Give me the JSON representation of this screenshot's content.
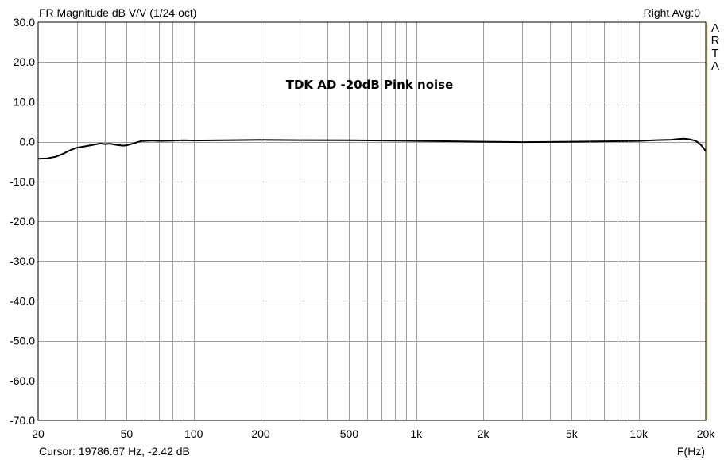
{
  "header": {
    "title": "FR Magnitude dB V/V (1/24 oct)",
    "channel_avg": "Right  Avg:0"
  },
  "brand_letters": [
    "A",
    "R",
    "T",
    "A"
  ],
  "footer": {
    "cursor": "Cursor: 19786.67 Hz, -2.42 dB",
    "x_axis_label": "F(Hz)"
  },
  "colors": {
    "background": "#ffffff",
    "grid": "#a0a0a0",
    "trace": "#000000",
    "brand_stripe": "#f4f0b4"
  },
  "chart_data": {
    "type": "line",
    "title": "FR Magnitude dB V/V (1/24 oct)",
    "annotation": "TDK AD -20dB Pink noise",
    "xlabel": "F(Hz)",
    "ylabel": "",
    "x_scale": "log",
    "xlim": [
      20,
      20000
    ],
    "ylim": [
      -70,
      30
    ],
    "grid": true,
    "x_ticks": [
      20,
      50,
      100,
      200,
      500,
      1000,
      2000,
      5000,
      10000,
      20000
    ],
    "x_tick_labels": [
      "20",
      "50",
      "100",
      "200",
      "500",
      "1k",
      "2k",
      "5k",
      "10k",
      "20k"
    ],
    "y_ticks": [
      30,
      20,
      10,
      0,
      -10,
      -20,
      -30,
      -40,
      -50,
      -60,
      -70
    ],
    "y_tick_labels": [
      "30.0",
      "20.0",
      "10.0",
      "0.0",
      "-10.0",
      "-20.0",
      "-30.0",
      "-40.0",
      "-50.0",
      "-60.0",
      "-70.0"
    ],
    "series": [
      {
        "x": [
          20,
          22,
          24,
          26,
          28,
          30,
          33,
          36,
          38,
          40,
          42,
          45,
          48,
          50,
          53,
          56,
          58,
          60,
          65,
          70,
          80,
          90,
          100,
          150,
          200,
          300,
          500,
          700,
          1000,
          1500,
          2000,
          3000,
          4000,
          5000,
          7000,
          10000,
          12000,
          14000,
          15000,
          16000,
          17000,
          17500,
          18000,
          18500,
          19000,
          19500,
          20000
        ],
        "y": [
          -4.3,
          -4.2,
          -3.8,
          -3.0,
          -2.1,
          -1.5,
          -1.1,
          -0.7,
          -0.45,
          -0.6,
          -0.5,
          -0.8,
          -1.0,
          -0.9,
          -0.5,
          -0.1,
          0.15,
          0.2,
          0.3,
          0.2,
          0.25,
          0.35,
          0.3,
          0.4,
          0.45,
          0.4,
          0.35,
          0.3,
          0.2,
          0.1,
          0.0,
          -0.1,
          -0.05,
          0.0,
          0.1,
          0.2,
          0.4,
          0.5,
          0.65,
          0.75,
          0.6,
          0.4,
          0.2,
          -0.2,
          -0.8,
          -1.5,
          -2.42
        ]
      }
    ]
  }
}
